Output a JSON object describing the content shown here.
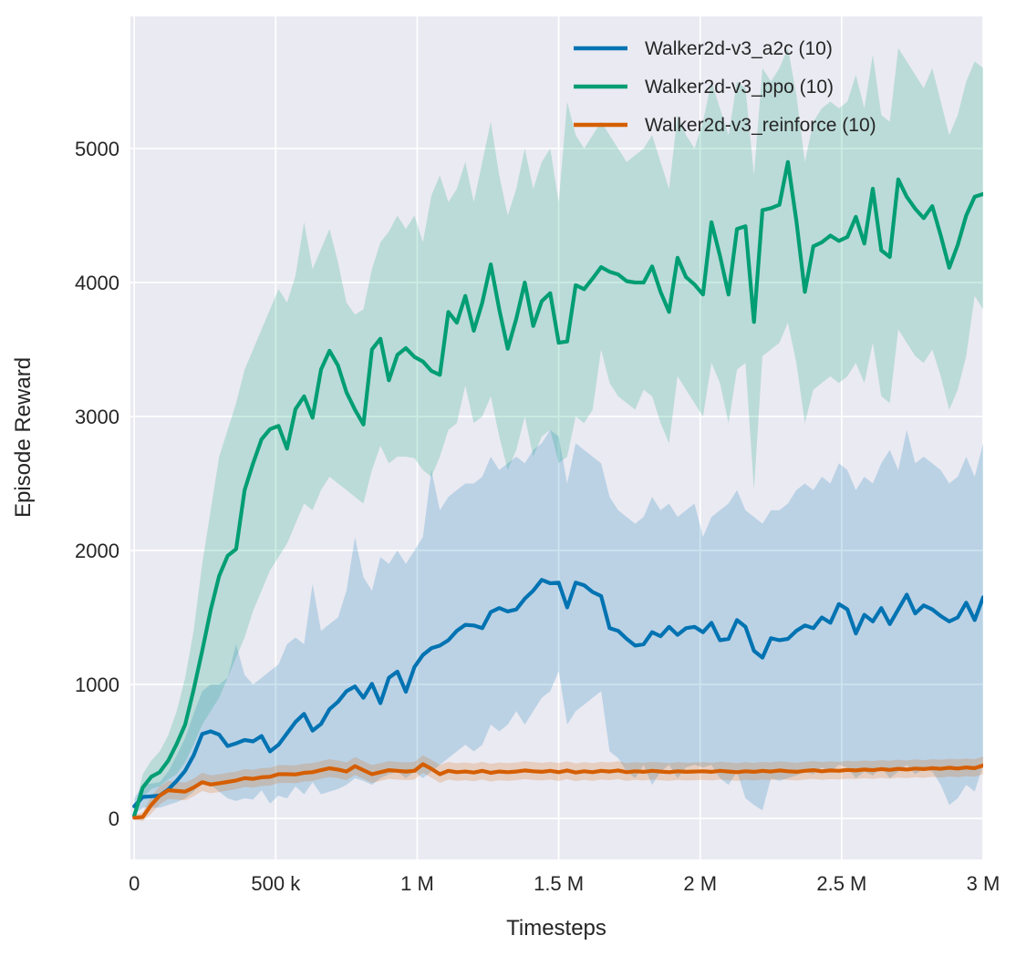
{
  "figure": {
    "background": "#ffffff",
    "axes_background": "#eaeaf2",
    "grid_color": "#ffffff",
    "text_color": "#262626"
  },
  "chart_data": {
    "type": "line",
    "title": "",
    "xlabel": "Timesteps",
    "ylabel": "Episode Reward",
    "grid": true,
    "legend_position": "upper right",
    "legend_frame": false,
    "x_unit": "timesteps (values below in thousands of steps)",
    "xlim_kilosteps": [
      -13.5,
      3000
    ],
    "ylim": [
      -306,
      5986
    ],
    "x_ticks": [
      {
        "value_k": 0,
        "label": "0"
      },
      {
        "value_k": 500,
        "label": "500 k"
      },
      {
        "value_k": 1000,
        "label": "1 M"
      },
      {
        "value_k": 1500,
        "label": "1.5 M"
      },
      {
        "value_k": 2000,
        "label": "2 M"
      },
      {
        "value_k": 2500,
        "label": "2.5 M"
      },
      {
        "value_k": 3000,
        "label": "3 M"
      }
    ],
    "y_ticks": [
      {
        "value": 0,
        "label": "0"
      },
      {
        "value": 1000,
        "label": "1000"
      },
      {
        "value": 2000,
        "label": "2000"
      },
      {
        "value": 3000,
        "label": "3000"
      },
      {
        "value": 4000,
        "label": "4000"
      },
      {
        "value": 5000,
        "label": "5000"
      }
    ],
    "x_kilosteps": [
      0,
      30,
      60,
      90,
      120,
      150,
      180,
      210,
      240,
      270,
      300,
      330,
      360,
      390,
      420,
      450,
      480,
      510,
      540,
      570,
      600,
      630,
      660,
      690,
      720,
      750,
      780,
      810,
      840,
      870,
      900,
      930,
      960,
      990,
      1020,
      1050,
      1080,
      1110,
      1140,
      1170,
      1200,
      1230,
      1260,
      1290,
      1320,
      1350,
      1380,
      1410,
      1440,
      1470,
      1500,
      1530,
      1560,
      1590,
      1620,
      1650,
      1680,
      1710,
      1740,
      1770,
      1800,
      1830,
      1860,
      1890,
      1920,
      1950,
      1980,
      2010,
      2040,
      2070,
      2100,
      2130,
      2160,
      2190,
      2220,
      2250,
      2280,
      2310,
      2340,
      2370,
      2400,
      2430,
      2460,
      2490,
      2520,
      2550,
      2580,
      2610,
      2640,
      2670,
      2700,
      2730,
      2760,
      2790,
      2820,
      2850,
      2880,
      2910,
      2940,
      2970,
      3000
    ],
    "series": [
      {
        "name": "Walker2d-v3_a2c (10)",
        "color": "#0173b2",
        "mean": [
          90,
          160,
          165,
          170,
          215,
          280,
          355,
          470,
          630,
          650,
          625,
          540,
          560,
          585,
          575,
          615,
          500,
          550,
          635,
          720,
          780,
          655,
          705,
          815,
          870,
          950,
          985,
          900,
          1005,
          860,
          1050,
          1095,
          945,
          1130,
          1220,
          1270,
          1290,
          1330,
          1400,
          1445,
          1440,
          1420,
          1540,
          1570,
          1545,
          1560,
          1640,
          1700,
          1780,
          1755,
          1760,
          1575,
          1760,
          1740,
          1690,
          1660,
          1420,
          1400,
          1340,
          1290,
          1300,
          1390,
          1360,
          1430,
          1370,
          1420,
          1430,
          1390,
          1460,
          1330,
          1340,
          1480,
          1430,
          1250,
          1200,
          1345,
          1330,
          1340,
          1400,
          1440,
          1420,
          1500,
          1460,
          1600,
          1560,
          1380,
          1520,
          1470,
          1570,
          1450,
          1560,
          1670,
          1530,
          1590,
          1560,
          1510,
          1470,
          1500,
          1610,
          1480,
          1650
        ],
        "lower": [
          30,
          80,
          80,
          80,
          100,
          120,
          150,
          200,
          280,
          250,
          200,
          150,
          130,
          150,
          140,
          210,
          110,
          170,
          150,
          240,
          180,
          270,
          180,
          200,
          220,
          250,
          300,
          280,
          250,
          300,
          330,
          350,
          300,
          350,
          300,
          350,
          400,
          450,
          500,
          550,
          500,
          550,
          700,
          650,
          700,
          800,
          700,
          800,
          900,
          950,
          1100,
          700,
          800,
          850,
          900,
          950,
          500,
          450,
          350,
          300,
          400,
          250,
          350,
          400,
          300,
          380,
          400,
          380,
          400,
          300,
          250,
          350,
          150,
          100,
          60,
          300,
          280,
          300,
          320,
          350,
          330,
          380,
          350,
          400,
          380,
          300,
          350,
          320,
          380,
          300,
          350,
          400,
          330,
          370,
          350,
          250,
          100,
          150,
          250,
          200,
          400
        ],
        "upper": [
          150,
          250,
          260,
          270,
          350,
          470,
          600,
          780,
          950,
          1000,
          1000,
          1050,
          1300,
          1070,
          1000,
          1050,
          1100,
          1150,
          1300,
          1350,
          1300,
          1750,
          1400,
          1450,
          1500,
          1700,
          2100,
          1800,
          1700,
          1950,
          1900,
          2000,
          1900,
          2000,
          2100,
          2600,
          2300,
          2400,
          2450,
          2500,
          2500,
          2550,
          2700,
          2600,
          2650,
          2700,
          2650,
          2750,
          2800,
          2900,
          2850,
          2500,
          2800,
          2750,
          2700,
          2650,
          2400,
          2300,
          2250,
          2200,
          2250,
          2400,
          2300,
          2350,
          2250,
          2300,
          2350,
          2100,
          2250,
          2300,
          2350,
          2450,
          2300,
          2250,
          2200,
          2300,
          2300,
          2350,
          2450,
          2500,
          2450,
          2550,
          2500,
          2650,
          2600,
          2450,
          2550,
          2500,
          2650,
          2750,
          2600,
          2900,
          2650,
          2700,
          2650,
          2600,
          2500,
          2550,
          2700,
          2550,
          2800
        ]
      },
      {
        "name": "Walker2d-v3_ppo (10)",
        "color": "#029e73",
        "mean": [
          20,
          230,
          310,
          345,
          430,
          555,
          700,
          960,
          1250,
          1555,
          1810,
          1960,
          2010,
          2450,
          2650,
          2830,
          2905,
          2930,
          2760,
          3055,
          3150,
          2990,
          3350,
          3490,
          3380,
          3180,
          3050,
          2940,
          3500,
          3580,
          3270,
          3460,
          3510,
          3445,
          3410,
          3340,
          3310,
          3780,
          3700,
          3900,
          3640,
          3850,
          4135,
          3800,
          3505,
          3730,
          4000,
          3675,
          3860,
          3920,
          3550,
          3560,
          3980,
          3950,
          4030,
          4115,
          4080,
          4060,
          4010,
          4000,
          4000,
          4120,
          3930,
          3780,
          4185,
          4040,
          3985,
          3910,
          4450,
          4200,
          3910,
          4400,
          4420,
          3705,
          4540,
          4555,
          4580,
          4900,
          4460,
          3930,
          4270,
          4300,
          4350,
          4310,
          4340,
          4490,
          4290,
          4700,
          4240,
          4190,
          4770,
          4640,
          4550,
          4480,
          4570,
          4350,
          4110,
          4280,
          4500,
          4640,
          4660
        ],
        "lower": [
          0,
          150,
          220,
          240,
          290,
          330,
          420,
          550,
          700,
          800,
          900,
          1050,
          1200,
          1350,
          1550,
          1700,
          1850,
          1950,
          2050,
          2200,
          2350,
          2300,
          2450,
          2550,
          2500,
          2450,
          2400,
          2350,
          2600,
          2780,
          2650,
          2700,
          2700,
          2690,
          2600,
          2550,
          2700,
          2900,
          2950,
          3230,
          2950,
          3000,
          3150,
          2850,
          2600,
          2750,
          3000,
          2700,
          2850,
          2900,
          2650,
          2700,
          3000,
          2950,
          3050,
          3500,
          3250,
          3150,
          3100,
          3050,
          3200,
          3150,
          2950,
          2800,
          3300,
          3200,
          3100,
          3000,
          3400,
          3250,
          2950,
          3350,
          3400,
          2450,
          3450,
          3500,
          3550,
          3700,
          3400,
          2950,
          3200,
          3250,
          3300,
          3250,
          3300,
          3400,
          3250,
          3550,
          3150,
          3100,
          3650,
          3550,
          3450,
          3400,
          3500,
          3300,
          3050,
          3200,
          3450,
          3900,
          3800
        ],
        "upper": [
          60,
          330,
          430,
          500,
          620,
          800,
          1050,
          1400,
          1900,
          2300,
          2700,
          2900,
          3100,
          3350,
          3500,
          3650,
          3800,
          3950,
          3850,
          4050,
          4450,
          4100,
          4250,
          4400,
          4150,
          3850,
          3760,
          3800,
          4100,
          4300,
          4380,
          4500,
          4400,
          4500,
          4300,
          4650,
          4800,
          4600,
          4700,
          4900,
          4600,
          4900,
          5200,
          4800,
          4500,
          4700,
          5000,
          4700,
          4900,
          5000,
          4600,
          5350,
          5100,
          5000,
          5100,
          5200,
          5100,
          5000,
          4900,
          4950,
          5000,
          5100,
          4900,
          4700,
          5250,
          5100,
          5000,
          5200,
          5500,
          5300,
          5100,
          5500,
          5450,
          4800,
          5600,
          5500,
          5600,
          5750,
          5400,
          4900,
          5200,
          5300,
          5350,
          5300,
          5350,
          5550,
          5300,
          5700,
          5250,
          5200,
          5750,
          5650,
          5550,
          5450,
          5600,
          5350,
          5100,
          5250,
          5500,
          5650,
          5600
        ]
      },
      {
        "name": "Walker2d-v3_reinforce (10)",
        "color": "#d55e00",
        "mean": [
          5,
          10,
          100,
          170,
          210,
          205,
          200,
          230,
          270,
          253,
          262,
          272,
          283,
          300,
          295,
          307,
          310,
          330,
          330,
          328,
          340,
          345,
          360,
          374,
          365,
          350,
          390,
          360,
          330,
          345,
          360,
          355,
          350,
          355,
          405,
          370,
          330,
          355,
          345,
          350,
          342,
          355,
          340,
          350,
          345,
          350,
          358,
          352,
          348,
          355,
          345,
          358,
          342,
          352,
          345,
          355,
          350,
          358,
          345,
          352,
          348,
          355,
          350,
          345,
          352,
          348,
          350,
          352,
          348,
          355,
          350,
          345,
          352,
          348,
          355,
          350,
          358,
          352,
          348,
          355,
          360,
          352,
          358,
          355,
          362,
          358,
          365,
          360,
          368,
          362,
          370,
          365,
          372,
          368,
          375,
          370,
          378,
          372,
          380,
          375,
          395
        ],
        "lower": [
          -10,
          -20,
          35,
          105,
          145,
          140,
          135,
          165,
          205,
          188,
          197,
          207,
          218,
          235,
          230,
          242,
          245,
          265,
          265,
          263,
          275,
          280,
          295,
          309,
          300,
          285,
          325,
          295,
          265,
          280,
          295,
          290,
          285,
          290,
          340,
          305,
          265,
          290,
          280,
          285,
          277,
          290,
          275,
          285,
          280,
          285,
          293,
          287,
          283,
          290,
          280,
          293,
          277,
          287,
          280,
          290,
          285,
          293,
          280,
          287,
          283,
          290,
          285,
          280,
          287,
          283,
          285,
          287,
          283,
          290,
          285,
          280,
          287,
          283,
          290,
          285,
          293,
          287,
          283,
          290,
          295,
          287,
          293,
          290,
          297,
          293,
          300,
          295,
          303,
          297,
          305,
          300,
          307,
          303,
          310,
          305,
          313,
          307,
          315,
          310,
          330
        ],
        "upper": [
          25,
          45,
          165,
          240,
          280,
          272,
          268,
          298,
          340,
          322,
          330,
          340,
          350,
          368,
          363,
          375,
          378,
          398,
          398,
          395,
          408,
          412,
          428,
          442,
          432,
          418,
          458,
          428,
          398,
          412,
          428,
          422,
          418,
          422,
          472,
          438,
          398,
          422,
          412,
          418,
          410,
          422,
          408,
          418,
          412,
          418,
          426,
          420,
          415,
          422,
          412,
          426,
          410,
          420,
          412,
          422,
          418,
          426,
          412,
          420,
          415,
          422,
          418,
          412,
          420,
          415,
          418,
          420,
          415,
          422,
          418,
          412,
          420,
          415,
          422,
          418,
          426,
          420,
          415,
          422,
          428,
          420,
          426,
          422,
          430,
          426,
          432,
          428,
          435,
          430,
          438,
          432,
          440,
          435,
          442,
          438,
          445,
          440,
          448,
          442,
          462
        ]
      }
    ]
  }
}
